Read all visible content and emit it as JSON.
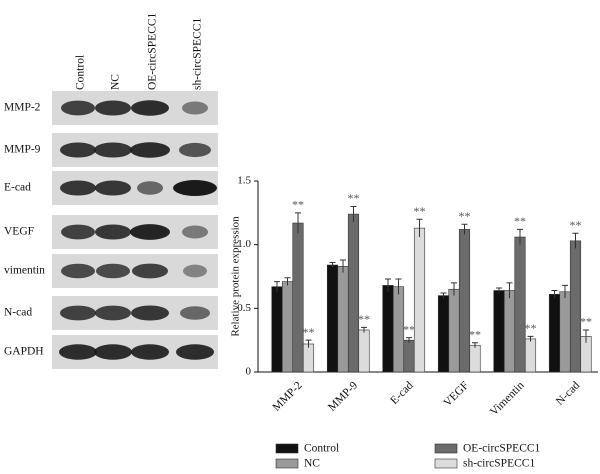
{
  "blot": {
    "lanes": [
      "Control",
      "NC",
      "OE-circSPECC1",
      "sh-circSPECC1"
    ],
    "rows": [
      "MMP-2",
      "MMP-9",
      "E-cad",
      "VEGF",
      "vimentin",
      "N-cad",
      "GAPDH"
    ]
  },
  "chart_data": {
    "type": "bar",
    "ylabel": "Relative protein expression",
    "categories": [
      "MMP-2",
      "MMP-9",
      "E-cad",
      "VEGF",
      "Vimentin",
      "N-cad"
    ],
    "series": [
      {
        "name": "Control",
        "color": "#111111",
        "values": [
          0.67,
          0.84,
          0.68,
          0.6,
          0.64,
          0.61
        ],
        "errors": [
          0.04,
          0.02,
          0.05,
          0.02,
          0.02,
          0.03
        ]
      },
      {
        "name": "NC",
        "color": "#9a9a9a",
        "values": [
          0.71,
          0.83,
          0.67,
          0.65,
          0.64,
          0.63
        ],
        "errors": [
          0.03,
          0.05,
          0.06,
          0.05,
          0.06,
          0.05
        ]
      },
      {
        "name": "OE-circSPECC1",
        "color": "#6b6b6b",
        "values": [
          1.17,
          1.24,
          0.25,
          1.12,
          1.06,
          1.03
        ],
        "errors": [
          0.08,
          0.06,
          0.02,
          0.04,
          0.06,
          0.06
        ],
        "significance": [
          "**",
          "**",
          "**",
          "**",
          "**",
          "**"
        ]
      },
      {
        "name": "sh-circSPECC1",
        "color": "#dcdcdc",
        "values": [
          0.22,
          0.33,
          1.13,
          0.21,
          0.26,
          0.28
        ],
        "errors": [
          0.03,
          0.02,
          0.07,
          0.02,
          0.02,
          0.05
        ],
        "significance": [
          "**",
          "**",
          "**",
          "**",
          "**",
          "**"
        ]
      }
    ],
    "ylim": [
      0,
      1.5
    ],
    "yticks": [
      0,
      0.5,
      {
        "value": 1,
        "label": "1.0"
      },
      1.5
    ],
    "legend": "bottom"
  }
}
